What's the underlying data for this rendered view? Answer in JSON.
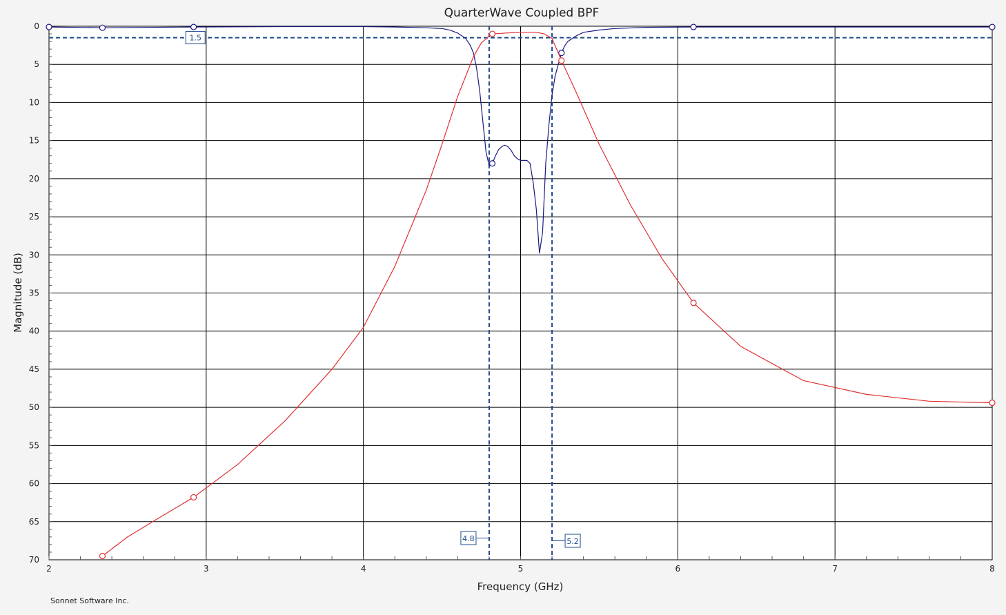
{
  "chart_data": {
    "type": "line",
    "title": "QuarterWave Coupled BPF",
    "xlabel": "Frequency (GHz)",
    "ylabel": "Magnitude (dB)",
    "xlim": [
      2,
      8
    ],
    "ylim": [
      0,
      70
    ],
    "y_inverted": true,
    "x_ticks": [
      "2",
      "3",
      "4",
      "5",
      "6",
      "7",
      "8"
    ],
    "y_ticks": [
      "0",
      "5",
      "10",
      "15",
      "20",
      "25",
      "30",
      "35",
      "40",
      "45",
      "50",
      "55",
      "60",
      "65",
      "70"
    ],
    "grid": true,
    "credit": "Sonnet Software Inc.",
    "colors": {
      "s11": "#1a1a80",
      "s21": "#e03030",
      "markers": "#1f4e8c",
      "grid": "#000000",
      "plot_bg": "#ffffff"
    },
    "series": [
      {
        "color": "#1a1a80",
        "x": [
          2.0,
          2.34,
          2.92,
          3.5,
          4.0,
          4.2,
          4.4,
          4.5,
          4.55,
          4.6,
          4.65,
          4.68,
          4.7,
          4.72,
          4.74,
          4.76,
          4.78,
          4.8,
          4.82,
          4.84,
          4.86,
          4.88,
          4.9,
          4.92,
          4.94,
          4.96,
          4.98,
          5.0,
          5.02,
          5.04,
          5.06,
          5.08,
          5.1,
          5.12,
          5.14,
          5.16,
          5.18,
          5.2,
          5.22,
          5.24,
          5.26,
          5.28,
          5.3,
          5.35,
          5.4,
          5.5,
          5.6,
          5.8,
          6.1,
          7.0,
          8.0
        ],
        "y": [
          0.1,
          0.2,
          0.1,
          0.05,
          0.05,
          0.1,
          0.2,
          0.3,
          0.5,
          0.9,
          1.6,
          2.5,
          3.5,
          5.5,
          8.5,
          12.5,
          16.5,
          18.3,
          18.0,
          17.0,
          16.2,
          15.8,
          15.6,
          15.8,
          16.3,
          17.0,
          17.4,
          17.6,
          17.6,
          17.6,
          18.0,
          20.5,
          24.0,
          29.8,
          27.0,
          18.0,
          13.0,
          9.0,
          6.5,
          5.0,
          3.5,
          2.6,
          2.0,
          1.3,
          0.8,
          0.5,
          0.3,
          0.15,
          0.1,
          0.1,
          0.1
        ],
        "markers_at": [
          2.0,
          2.34,
          2.92,
          4.82,
          5.26,
          6.1,
          8.0
        ]
      },
      {
        "color": "#e03030",
        "x": [
          2.34,
          2.5,
          2.7,
          2.92,
          3.2,
          3.5,
          3.8,
          4.0,
          4.2,
          4.4,
          4.5,
          4.6,
          4.7,
          4.75,
          4.8,
          4.82,
          4.9,
          5.0,
          5.1,
          5.15,
          5.2,
          5.26,
          5.35,
          5.5,
          5.7,
          5.9,
          6.1,
          6.4,
          6.8,
          7.2,
          7.6,
          8.0
        ],
        "y": [
          69.5,
          67.0,
          64.5,
          61.8,
          57.5,
          51.8,
          45.0,
          39.5,
          31.5,
          21.5,
          15.5,
          9.2,
          4.0,
          2.2,
          1.3,
          1.0,
          0.9,
          0.8,
          0.8,
          1.0,
          1.6,
          4.5,
          8.5,
          15.5,
          23.5,
          30.5,
          36.3,
          42.0,
          46.5,
          48.3,
          49.2,
          49.4
        ],
        "markers_at": [
          2.34,
          2.92,
          4.82,
          5.26,
          6.1,
          8.0
        ]
      }
    ],
    "reference_lines": [
      {
        "axis": "y",
        "value": 1.5,
        "label": "1.5"
      },
      {
        "axis": "x",
        "value": 4.8,
        "label": "4.8"
      },
      {
        "axis": "x",
        "value": 5.2,
        "label": "5.2"
      }
    ]
  }
}
